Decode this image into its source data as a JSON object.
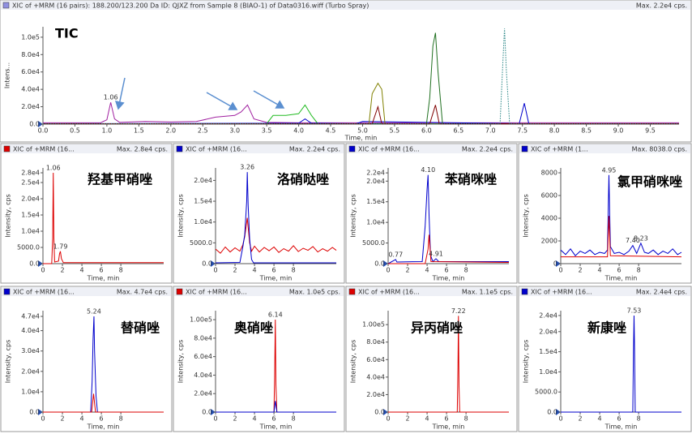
{
  "chart_data": [
    {
      "type": "line",
      "title": "XIC of +MRM (16 pairs): 188.200/123.200 Da ID: QJXZ from Sample 8 (BIAO-1) of Data0316.wiff (Turbo Spray)",
      "max_label": "Max. 2.2e4 cps.",
      "legend_color": "#9090e0",
      "annotation": "TIC",
      "x_label": "Time, min",
      "y_label": "Intens...",
      "xlim": [
        0,
        9.95
      ],
      "ylim": [
        0,
        112000
      ],
      "xticks": [
        {
          "value": 0,
          "label": "0.0"
        },
        0.5,
        {
          "value": 1,
          "label": "1.0"
        },
        1.5,
        {
          "value": 2,
          "label": "2.0"
        },
        2.5,
        {
          "value": 3,
          "label": "3.0"
        },
        3.5,
        {
          "value": 4,
          "label": "4.0"
        },
        4.5,
        {
          "value": 5,
          "label": "5.0"
        },
        5.5,
        {
          "value": 6,
          "label": "6.0"
        },
        6.5,
        {
          "value": 7,
          "label": "7.0"
        },
        7.5,
        {
          "value": 8,
          "label": "8.0"
        },
        8.5,
        {
          "value": 9,
          "label": "9.0"
        },
        9.5
      ],
      "yticks": [
        {
          "value": 0,
          "label": "0.0"
        },
        {
          "value": 20000,
          "label": "2.0e4"
        },
        {
          "value": 40000,
          "label": "4.0e4"
        },
        {
          "value": 60000,
          "label": "6.0e4"
        },
        {
          "value": 80000,
          "label": "8.0e4"
        },
        {
          "value": 100000,
          "label": "1.0e5"
        }
      ],
      "series": [
        {
          "color": "#a020a0",
          "x": [
            0,
            0.9,
            1.0,
            1.06,
            1.12,
            1.2,
            1.6,
            2.0,
            2.4,
            2.7,
            3.0,
            3.1,
            3.2,
            3.3,
            3.5,
            4.0,
            9.95
          ],
          "values": [
            1500,
            1500,
            5000,
            25000,
            6000,
            2000,
            3000,
            2500,
            3000,
            8000,
            10000,
            14000,
            22000,
            6000,
            2000,
            1500,
            1500
          ]
        },
        {
          "color": "#22bb22",
          "x": [
            0,
            3.5,
            3.6,
            3.8,
            4.0,
            4.1,
            4.2,
            4.3,
            9.95
          ],
          "values": [
            500,
            500,
            10000,
            10000,
            12000,
            22000,
            10000,
            500,
            500
          ]
        },
        {
          "color": "#0000cc",
          "x": [
            0,
            4.0,
            4.1,
            4.2,
            4.9,
            5.0,
            7.45,
            7.53,
            7.6,
            9.95
          ],
          "values": [
            500,
            1000,
            6000,
            1000,
            500,
            3000,
            500,
            24000,
            500,
            500
          ]
        },
        {
          "color": "#808000",
          "x": [
            0,
            5.1,
            5.15,
            5.24,
            5.3,
            5.35,
            9.95
          ],
          "values": [
            500,
            500,
            35000,
            47000,
            40000,
            500,
            500
          ]
        },
        {
          "color": "#207020",
          "x": [
            0,
            6.0,
            6.05,
            6.1,
            6.14,
            6.18,
            6.25,
            9.95
          ],
          "values": [
            500,
            500,
            30000,
            90000,
            105000,
            60000,
            500,
            500
          ]
        },
        {
          "color": "#800000",
          "x": [
            0,
            5.15,
            5.24,
            5.3,
            6.05,
            6.14,
            6.2,
            9.95
          ],
          "values": [
            300,
            300,
            20000,
            300,
            300,
            22000,
            300,
            300
          ]
        },
        {
          "color": "#208080",
          "style": "dotted",
          "x": [
            0,
            7.15,
            7.2,
            7.22,
            7.25,
            7.3,
            9.95
          ],
          "values": [
            300,
            300,
            80000,
            110000,
            60000,
            300,
            300
          ]
        }
      ],
      "peaks": [
        {
          "label": "1.06",
          "x": 1.06,
          "y": 25000
        }
      ]
    },
    {
      "type": "line",
      "title": "XIC of +MRM (16...",
      "max_label": "Max. 2.8e4 cps.",
      "legend_color": "#dd0000",
      "annotation": "羟基甲硝唑",
      "x_label": "Time, min",
      "y_label": "Intensity, cps",
      "xlim": [
        0,
        12.4
      ],
      "ylim": [
        0,
        29500
      ],
      "xticks": [
        0,
        2,
        4,
        6,
        8
      ],
      "yticks": [
        {
          "value": 0,
          "label": "0.0"
        },
        {
          "value": 5000,
          "label": "5000.0"
        },
        {
          "value": 10000,
          "label": "1.0e4"
        },
        {
          "value": 15000,
          "label": "1.5e4"
        },
        {
          "value": 20000,
          "label": "2.0e4"
        },
        {
          "value": 25000,
          "label": "2.5e4"
        },
        {
          "value": 28000,
          "label": "2.8e4"
        }
      ],
      "series": [
        {
          "color": "#dd0000",
          "x": [
            0,
            0.9,
            1.0,
            1.06,
            1.12,
            1.2,
            1.6,
            1.7,
            1.79,
            1.9,
            2.1,
            12.4
          ],
          "values": [
            0,
            0,
            8000,
            28000,
            8000,
            500,
            800,
            3000,
            3800,
            1500,
            300,
            300
          ]
        }
      ],
      "peaks": [
        {
          "label": "1.06",
          "x": 1.06,
          "y": 28000
        },
        {
          "label": "1.79",
          "x": 1.79,
          "y": 3800
        }
      ]
    },
    {
      "type": "line",
      "title": "XIC of +MRM (16...",
      "max_label": "Max. 2.2e4 cps.",
      "legend_color": "#0000cc",
      "annotation": "洛硝哒唑",
      "x_label": "Time, min",
      "y_label": "Intensity, cps",
      "xlim": [
        0,
        12.4
      ],
      "ylim": [
        0,
        23000
      ],
      "xticks": [
        0,
        2,
        4,
        6,
        8
      ],
      "yticks": [
        {
          "value": 0,
          "label": "0.0"
        },
        {
          "value": 5000,
          "label": "5000.0"
        },
        {
          "value": 10000,
          "label": "1.0e4"
        },
        {
          "value": 15000,
          "label": "1.5e4"
        },
        {
          "value": 20000,
          "label": "2.0e4"
        }
      ],
      "series": [
        {
          "color": "#dd0000",
          "x": [
            0,
            0.5,
            1,
            1.5,
            2,
            2.5,
            2.8,
            3.0,
            3.26,
            3.5,
            3.7,
            4,
            4.5,
            5,
            5.5,
            6,
            6.5,
            7,
            7.5,
            8,
            8.5,
            9,
            9.5,
            10,
            10.5,
            11,
            11.5,
            12,
            12.4
          ],
          "values": [
            3500,
            2500,
            4000,
            2800,
            3800,
            3000,
            4500,
            6500,
            11000,
            5000,
            3000,
            4200,
            2800,
            3900,
            3100,
            4000,
            2700,
            3600,
            3000,
            4300,
            2900,
            3700,
            3200,
            4100,
            2800,
            3600,
            3000,
            3900,
            3200
          ]
        },
        {
          "color": "#0000cc",
          "x": [
            0,
            2.5,
            2.8,
            3.0,
            3.1,
            3.2,
            3.26,
            3.35,
            3.5,
            3.7,
            3.9,
            12.4
          ],
          "values": [
            200,
            300,
            4000,
            7000,
            11000,
            15000,
            22000,
            14000,
            6000,
            1000,
            200,
            200
          ]
        }
      ],
      "peaks": [
        {
          "label": "3.26",
          "x": 3.26,
          "y": 22000
        }
      ]
    },
    {
      "type": "line",
      "title": "XIC of +MRM (16...",
      "max_label": "Max. 2.2e4 cps.",
      "legend_color": "#0000cc",
      "annotation": "苯硝咪唑",
      "x_label": "Time, min",
      "y_label": "Intensity, cps",
      "xlim": [
        0,
        12.4
      ],
      "ylim": [
        0,
        23200
      ],
      "xticks": [
        0,
        2,
        4,
        6,
        8
      ],
      "yticks": [
        {
          "value": 0,
          "label": "0.0"
        },
        {
          "value": 5000,
          "label": "5000.0"
        },
        {
          "value": 10000,
          "label": "1.0e4"
        },
        {
          "value": 15000,
          "label": "1.5e4"
        },
        {
          "value": 20000,
          "label": "2.0e4"
        },
        {
          "value": 22000,
          "label": "2.2e4"
        }
      ],
      "series": [
        {
          "color": "#0000cc",
          "x": [
            0,
            0.77,
            0.9,
            3.5,
            3.8,
            4.0,
            4.1,
            4.2,
            4.35,
            4.6,
            4.91,
            5.2,
            12.4
          ],
          "values": [
            0,
            1000,
            400,
            500,
            9000,
            18000,
            21500,
            12000,
            2000,
            500,
            1200,
            500,
            500
          ]
        },
        {
          "color": "#dd0000",
          "x": [
            0,
            3.8,
            4.1,
            4.2,
            4.4,
            12.4
          ],
          "values": [
            0,
            0,
            3500,
            7000,
            500,
            300
          ]
        }
      ],
      "peaks": [
        {
          "label": "0.77",
          "x": 0.77,
          "y": 1000
        },
        {
          "label": "4.10",
          "x": 4.1,
          "y": 21500
        },
        {
          "label": "4.91",
          "x": 4.91,
          "y": 1200
        }
      ]
    },
    {
      "type": "line",
      "title": "XIC of +MRM (1...",
      "max_label": "Max. 8038.0 cps.",
      "legend_color": "#0000cc",
      "annotation": "氯甲硝咪唑",
      "x_label": "Time, min",
      "y_label": "Intensity, cps",
      "xlim": [
        0,
        12.4
      ],
      "ylim": [
        0,
        8430
      ],
      "xticks": [
        0,
        2,
        4,
        6,
        8
      ],
      "yticks": [
        0,
        2000,
        4000,
        6000,
        8000
      ],
      "series": [
        {
          "color": "#0000cc",
          "x": [
            0,
            0.5,
            1,
            1.5,
            2,
            2.5,
            3,
            3.5,
            4,
            4.5,
            4.8,
            4.95,
            5.1,
            5.5,
            6,
            6.5,
            7,
            7.4,
            7.8,
            8.23,
            8.6,
            9,
            9.5,
            10,
            10.5,
            11,
            11.5,
            12,
            12.4
          ],
          "values": [
            1200,
            800,
            1300,
            700,
            1100,
            900,
            1200,
            800,
            1000,
            900,
            1200,
            7800,
            1500,
            900,
            1000,
            800,
            1100,
            1600,
            900,
            1800,
            1000,
            900,
            1200,
            800,
            1100,
            900,
            1300,
            800,
            1000
          ]
        },
        {
          "color": "#dd0000",
          "x": [
            0,
            4.8,
            4.95,
            5.1,
            12.4
          ],
          "values": [
            600,
            600,
            4200,
            700,
            600
          ]
        }
      ],
      "peaks": [
        {
          "label": "4.95",
          "x": 4.95,
          "y": 7800
        },
        {
          "label": "7.40",
          "x": 7.4,
          "y": 1600
        },
        {
          "label": "8.23",
          "x": 8.23,
          "y": 1800
        }
      ]
    },
    {
      "type": "line",
      "title": "XIC of +MRM (16...",
      "max_label": "Max. 4.7e4 cps.",
      "legend_color": "#0000cc",
      "annotation": "替硝唑",
      "x_label": "Time, min",
      "y_label": "Intensity, cps",
      "xlim": [
        0,
        12.4
      ],
      "ylim": [
        0,
        49800
      ],
      "xticks": [
        0,
        2,
        4,
        6,
        8
      ],
      "yticks": [
        {
          "value": 0,
          "label": "0.0"
        },
        {
          "value": 10000,
          "label": "1.0e4"
        },
        {
          "value": 20000,
          "label": "2.0e4"
        },
        {
          "value": 30000,
          "label": "3.0e4"
        },
        {
          "value": 40000,
          "label": "4.0e4"
        },
        {
          "value": 47000,
          "label": "4.7e4"
        }
      ],
      "series": [
        {
          "color": "#0000cc",
          "x": [
            0,
            4.9,
            5.05,
            5.15,
            5.24,
            5.3,
            5.45,
            5.6,
            12.4
          ],
          "values": [
            0,
            0,
            15000,
            36000,
            47000,
            30000,
            8000,
            0,
            0
          ]
        },
        {
          "color": "#dd0000",
          "x": [
            0,
            5.0,
            5.2,
            5.4,
            12.4
          ],
          "values": [
            0,
            0,
            9000,
            0,
            0
          ]
        }
      ],
      "peaks": [
        {
          "label": "5.24",
          "x": 5.24,
          "y": 47000
        }
      ]
    },
    {
      "type": "line",
      "title": "XIC of +MRM (16...",
      "max_label": "Max. 1.0e5 cps.",
      "legend_color": "#dd0000",
      "annotation": "奥硝唑",
      "x_label": "Time, min",
      "y_label": "Intensity, cps",
      "xlim": [
        0,
        12.4
      ],
      "ylim": [
        0,
        109700
      ],
      "xticks": [
        0,
        2,
        4,
        6,
        8
      ],
      "yticks": [
        {
          "value": 0,
          "label": "0.0"
        },
        {
          "value": 20000,
          "label": "2.0e4"
        },
        {
          "value": 40000,
          "label": "4.0e4"
        },
        {
          "value": 60000,
          "label": "6.0e4"
        },
        {
          "value": 80000,
          "label": "8.0e4"
        },
        {
          "value": 100000,
          "label": "1.00e5"
        }
      ],
      "series": [
        {
          "color": "#dd0000",
          "x": [
            0,
            6.0,
            6.07,
            6.14,
            6.2,
            6.3,
            12.4
          ],
          "values": [
            0,
            0,
            40000,
            100000,
            30000,
            0,
            0
          ]
        },
        {
          "color": "#0000cc",
          "x": [
            0,
            6.0,
            6.14,
            6.3,
            12.4
          ],
          "values": [
            0,
            0,
            12000,
            0,
            0
          ]
        }
      ],
      "peaks": [
        {
          "label": "6.14",
          "x": 6.14,
          "y": 100000
        }
      ]
    },
    {
      "type": "line",
      "title": "XIC of +MRM (16...",
      "max_label": "Max. 1.1e5 cps.",
      "legend_color": "#dd0000",
      "annotation": "异丙硝唑",
      "x_label": "Time, min",
      "y_label": "Intensity, cps",
      "xlim": [
        0,
        12.4
      ],
      "ylim": [
        0,
        115900
      ],
      "xticks": [
        0,
        2,
        4,
        6,
        8
      ],
      "yticks": [
        {
          "value": 0,
          "label": "0.0"
        },
        {
          "value": 20000,
          "label": "2.0e4"
        },
        {
          "value": 40000,
          "label": "4.0e4"
        },
        {
          "value": 60000,
          "label": "6.0e4"
        },
        {
          "value": 80000,
          "label": "8.0e4"
        },
        {
          "value": 100000,
          "label": "1.00e5"
        }
      ],
      "series": [
        {
          "color": "#dd0000",
          "x": [
            0,
            7.1,
            7.17,
            7.22,
            7.28,
            7.35,
            12.4
          ],
          "values": [
            0,
            0,
            50000,
            110000,
            30000,
            0,
            0
          ]
        }
      ],
      "peaks": [
        {
          "label": "7.22",
          "x": 7.22,
          "y": 110000
        }
      ]
    },
    {
      "type": "line",
      "title": "XIC of +MRM (16...",
      "max_label": "Max. 2.4e4 cps.",
      "legend_color": "#0000cc",
      "annotation": "新康唑",
      "x_label": "Time, min",
      "y_label": "Intensity, cps",
      "xlim": [
        0,
        12.4
      ],
      "ylim": [
        0,
        25200
      ],
      "xticks": [
        0,
        2,
        4,
        6,
        8
      ],
      "yticks": [
        {
          "value": 0,
          "label": "0.0"
        },
        {
          "value": 5000,
          "label": "5000.0"
        },
        {
          "value": 10000,
          "label": "1.0e4"
        },
        {
          "value": 15000,
          "label": "1.5e4"
        },
        {
          "value": 20000,
          "label": "2.0e4"
        },
        {
          "value": 24000,
          "label": "2.4e4"
        }
      ],
      "series": [
        {
          "color": "#0000cc",
          "x": [
            0,
            7.4,
            7.47,
            7.53,
            7.58,
            7.65,
            12.4
          ],
          "values": [
            0,
            0,
            15000,
            24000,
            16000,
            0,
            0
          ]
        }
      ],
      "peaks": [
        {
          "label": "7.53",
          "x": 7.53,
          "y": 24000
        }
      ]
    }
  ]
}
